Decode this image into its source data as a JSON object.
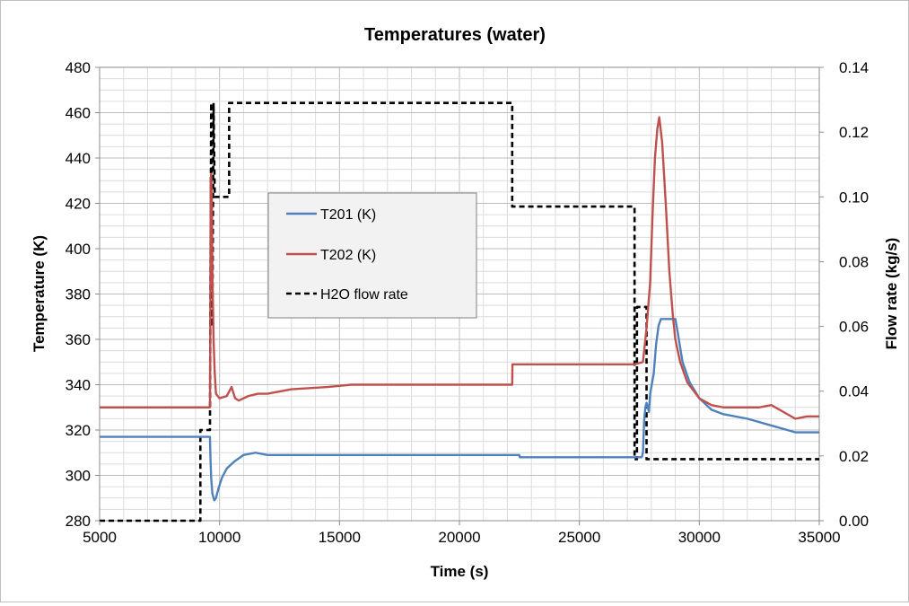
{
  "chart_data": {
    "type": "line",
    "title": "Temperatures (water)",
    "xlabel": "Time (s)",
    "ylabel": "Temperature (K)",
    "y2label": "Flow rate (kg/s)",
    "xlim": [
      5000,
      35000
    ],
    "ylim": [
      280,
      480
    ],
    "y2lim": [
      0,
      0.14
    ],
    "x_ticks": [
      "5000",
      "10000",
      "15000",
      "20000",
      "25000",
      "30000",
      "35000"
    ],
    "y_ticks": [
      "280",
      "300",
      "320",
      "340",
      "360",
      "380",
      "400",
      "420",
      "440",
      "460",
      "480"
    ],
    "y2_ticks": [
      "0.00",
      "0.02",
      "0.04",
      "0.06",
      "0.08",
      "0.10",
      "0.12",
      "0.14"
    ],
    "grid": true,
    "legend_position": "center-left",
    "series": [
      {
        "name": "T201 (K)",
        "axis": "left",
        "color": "#4f81bd",
        "style": "solid",
        "points": [
          [
            5000,
            317
          ],
          [
            9600,
            317
          ],
          [
            9620,
            308
          ],
          [
            9650,
            299
          ],
          [
            9700,
            292
          ],
          [
            9780,
            289
          ],
          [
            9850,
            290
          ],
          [
            9950,
            294
          ],
          [
            10100,
            299
          ],
          [
            10300,
            303
          ],
          [
            10600,
            306
          ],
          [
            11000,
            309
          ],
          [
            11500,
            310
          ],
          [
            12000,
            309
          ],
          [
            22500,
            309
          ],
          [
            22510,
            308
          ],
          [
            27250,
            308
          ],
          [
            27300,
            308
          ],
          [
            27600,
            308
          ],
          [
            27650,
            310
          ],
          [
            27700,
            324
          ],
          [
            27750,
            330
          ],
          [
            27800,
            332
          ],
          [
            27900,
            328
          ],
          [
            27950,
            336
          ],
          [
            28100,
            345
          ],
          [
            28200,
            358
          ],
          [
            28300,
            366
          ],
          [
            28400,
            369
          ],
          [
            29000,
            369
          ],
          [
            29100,
            363
          ],
          [
            29300,
            350
          ],
          [
            29600,
            341
          ],
          [
            30000,
            334
          ],
          [
            30500,
            329
          ],
          [
            31000,
            327
          ],
          [
            32000,
            325
          ],
          [
            33000,
            322
          ],
          [
            34000,
            319
          ],
          [
            35000,
            319
          ]
        ]
      },
      {
        "name": "T202 (K)",
        "axis": "left",
        "color": "#c0504d",
        "style": "solid",
        "points": [
          [
            5000,
            330
          ],
          [
            9600,
            330
          ],
          [
            9610,
            350
          ],
          [
            9630,
            430
          ],
          [
            9650,
            433
          ],
          [
            9680,
            420
          ],
          [
            9700,
            390
          ],
          [
            9750,
            360
          ],
          [
            9800,
            345
          ],
          [
            9850,
            336
          ],
          [
            10000,
            334
          ],
          [
            10300,
            335
          ],
          [
            10500,
            339
          ],
          [
            10650,
            334
          ],
          [
            10800,
            333
          ],
          [
            11200,
            335
          ],
          [
            11600,
            336
          ],
          [
            12000,
            336
          ],
          [
            13000,
            338
          ],
          [
            14500,
            339
          ],
          [
            15500,
            340
          ],
          [
            22200,
            340
          ],
          [
            22210,
            349
          ],
          [
            27300,
            349
          ],
          [
            27650,
            350
          ],
          [
            27800,
            365
          ],
          [
            27950,
            385
          ],
          [
            28050,
            415
          ],
          [
            28150,
            440
          ],
          [
            28250,
            453
          ],
          [
            28330,
            458
          ],
          [
            28450,
            447
          ],
          [
            28600,
            420
          ],
          [
            28750,
            390
          ],
          [
            28900,
            370
          ],
          [
            29000,
            360
          ],
          [
            29200,
            350
          ],
          [
            29500,
            341
          ],
          [
            30000,
            334
          ],
          [
            30500,
            331
          ],
          [
            31000,
            330
          ],
          [
            32500,
            330
          ],
          [
            33000,
            331
          ],
          [
            34000,
            325
          ],
          [
            34500,
            326
          ],
          [
            35000,
            326
          ]
        ]
      },
      {
        "name": "H2O flow rate",
        "axis": "right",
        "color": "#000000",
        "style": "dashed",
        "points": [
          [
            5000,
            0
          ],
          [
            9200,
            0
          ],
          [
            9200,
            0.028
          ],
          [
            9600,
            0.028
          ],
          [
            9650,
            0.129
          ],
          [
            9700,
            0.06
          ],
          [
            9750,
            0.129
          ],
          [
            9800,
            0.1
          ],
          [
            10400,
            0.1
          ],
          [
            10400,
            0.129
          ],
          [
            22200,
            0.129
          ],
          [
            22200,
            0.097
          ],
          [
            27300,
            0.097
          ],
          [
            27300,
            0.019
          ],
          [
            27400,
            0.019
          ],
          [
            27400,
            0.066
          ],
          [
            27800,
            0.066
          ],
          [
            27800,
            0.019
          ],
          [
            35000,
            0.019
          ]
        ]
      }
    ]
  }
}
